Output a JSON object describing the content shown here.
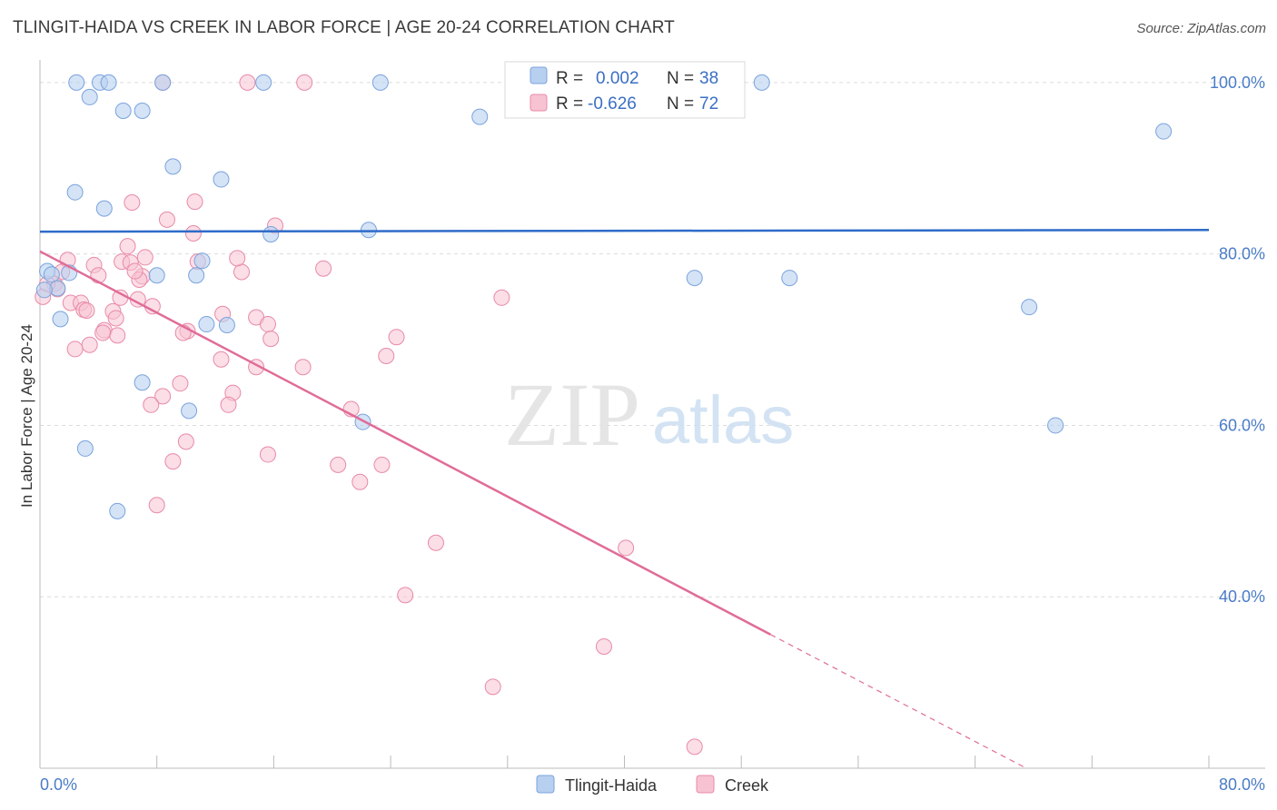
{
  "title": "TLINGIT-HAIDA VS CREEK IN LABOR FORCE | AGE 20-24 CORRELATION CHART",
  "source": "Source: ZipAtlas.com",
  "watermark": {
    "zip": "ZIP",
    "atlas": "atlas"
  },
  "legend": {
    "r_label": "R =",
    "n_label": "N =",
    "series1": {
      "r": "0.002",
      "n": "38"
    },
    "series2": {
      "r": "-0.626",
      "n": "72"
    }
  },
  "chart_data": {
    "type": "scatter",
    "title": "TLINGIT-HAIDA VS CREEK IN LABOR FORCE | AGE 20-24 CORRELATION CHART",
    "xlabel": "",
    "ylabel": "In Labor Force | Age 20-24",
    "xlim": [
      0,
      80
    ],
    "ylim": [
      20,
      102
    ],
    "x_tick_labels": [
      "0.0%",
      "80.0%"
    ],
    "y_ticks": [
      40,
      60,
      80,
      100
    ],
    "y_tick_labels": [
      "40.0%",
      "60.0%",
      "80.0%",
      "100.0%"
    ],
    "colors": {
      "series1_fill": "#b8d0f0",
      "series1_stroke": "#7aa3dc",
      "series1_line": "#2e6bc9",
      "series2_fill": "#f7c3d2",
      "series2_stroke": "#e88aa8",
      "series2_line": "#e06c97"
    },
    "series": [
      {
        "name": "Tlingit-Haida",
        "r": 0.002,
        "n": 38,
        "trend": {
          "x": [
            0,
            80
          ],
          "y": [
            82.6,
            82.8
          ]
        },
        "points": [
          [
            2.5,
            100
          ],
          [
            4.1,
            100
          ],
          [
            4.7,
            100
          ],
          [
            8.4,
            100
          ],
          [
            15.3,
            100
          ],
          [
            23.3,
            100
          ],
          [
            49.4,
            100
          ],
          [
            3.4,
            98.3
          ],
          [
            5.7,
            96.7
          ],
          [
            7.0,
            96.7
          ],
          [
            30.1,
            96.0
          ],
          [
            76.9,
            94.3
          ],
          [
            9.1,
            90.2
          ],
          [
            12.4,
            88.7
          ],
          [
            2.4,
            87.2
          ],
          [
            4.4,
            85.3
          ],
          [
            22.5,
            82.8
          ],
          [
            15.8,
            82.3
          ],
          [
            11.1,
            79.2
          ],
          [
            0.5,
            78.0
          ],
          [
            0.8,
            77.6
          ],
          [
            8.0,
            77.5
          ],
          [
            10.7,
            77.5
          ],
          [
            44.8,
            77.2
          ],
          [
            51.3,
            77.2
          ],
          [
            1.2,
            76.0
          ],
          [
            67.7,
            73.8
          ],
          [
            1.4,
            72.4
          ],
          [
            11.4,
            71.8
          ],
          [
            12.8,
            71.7
          ],
          [
            7.0,
            65.0
          ],
          [
            10.2,
            61.7
          ],
          [
            22.1,
            60.4
          ],
          [
            69.5,
            60.0
          ],
          [
            3.1,
            57.3
          ],
          [
            5.3,
            50.0
          ],
          [
            0.3,
            75.8
          ],
          [
            2.0,
            77.8
          ]
        ]
      },
      {
        "name": "Creek",
        "r": -0.626,
        "n": 72,
        "trend": {
          "x": [
            0,
            50
          ],
          "y": [
            80.3,
            35.6
          ],
          "dash_x": [
            50,
            67.5
          ],
          "dash_y": [
            35.6,
            20
          ]
        },
        "points": [
          [
            8.4,
            100
          ],
          [
            14.2,
            100
          ],
          [
            18.1,
            100
          ],
          [
            6.3,
            86.0
          ],
          [
            10.6,
            86.1
          ],
          [
            8.7,
            84.0
          ],
          [
            16.1,
            83.3
          ],
          [
            10.5,
            82.4
          ],
          [
            6.0,
            80.9
          ],
          [
            7.2,
            79.6
          ],
          [
            1.9,
            79.3
          ],
          [
            5.6,
            79.1
          ],
          [
            10.8,
            79.1
          ],
          [
            6.2,
            79.0
          ],
          [
            3.7,
            78.7
          ],
          [
            13.8,
            77.9
          ],
          [
            19.4,
            78.3
          ],
          [
            1.5,
            77.9
          ],
          [
            4.0,
            77.5
          ],
          [
            7.0,
            77.4
          ],
          [
            6.8,
            77.0
          ],
          [
            1.0,
            76.5
          ],
          [
            1.2,
            75.9
          ],
          [
            0.2,
            75.0
          ],
          [
            5.5,
            74.9
          ],
          [
            6.7,
            74.7
          ],
          [
            31.6,
            74.9
          ],
          [
            2.1,
            74.3
          ],
          [
            2.8,
            74.3
          ],
          [
            3.0,
            73.5
          ],
          [
            3.2,
            73.4
          ],
          [
            5.0,
            73.3
          ],
          [
            7.7,
            73.9
          ],
          [
            5.2,
            72.5
          ],
          [
            14.8,
            72.6
          ],
          [
            15.6,
            71.8
          ],
          [
            4.4,
            71.1
          ],
          [
            4.3,
            70.8
          ],
          [
            10.1,
            71.0
          ],
          [
            5.3,
            70.5
          ],
          [
            15.8,
            70.1
          ],
          [
            24.4,
            70.3
          ],
          [
            3.4,
            69.4
          ],
          [
            2.4,
            68.9
          ],
          [
            23.7,
            68.1
          ],
          [
            12.4,
            67.7
          ],
          [
            18.0,
            66.8
          ],
          [
            14.8,
            66.8
          ],
          [
            9.6,
            64.9
          ],
          [
            13.2,
            63.8
          ],
          [
            8.4,
            63.4
          ],
          [
            7.6,
            62.4
          ],
          [
            12.9,
            62.4
          ],
          [
            21.3,
            61.9
          ],
          [
            10.0,
            58.1
          ],
          [
            15.6,
            56.6
          ],
          [
            9.1,
            55.8
          ],
          [
            20.4,
            55.4
          ],
          [
            23.4,
            55.4
          ],
          [
            21.9,
            53.4
          ],
          [
            8.0,
            50.7
          ],
          [
            27.1,
            46.3
          ],
          [
            40.1,
            45.7
          ],
          [
            25.0,
            40.2
          ],
          [
            38.6,
            34.2
          ],
          [
            31.0,
            29.5
          ],
          [
            44.8,
            22.5
          ],
          [
            0.5,
            76.5
          ],
          [
            6.5,
            78.0
          ],
          [
            9.8,
            70.8
          ],
          [
            12.5,
            73.0
          ],
          [
            13.5,
            79.5
          ]
        ]
      }
    ]
  },
  "bottom_legend": [
    {
      "label": "Tlingit-Haida"
    },
    {
      "label": "Creek"
    }
  ]
}
